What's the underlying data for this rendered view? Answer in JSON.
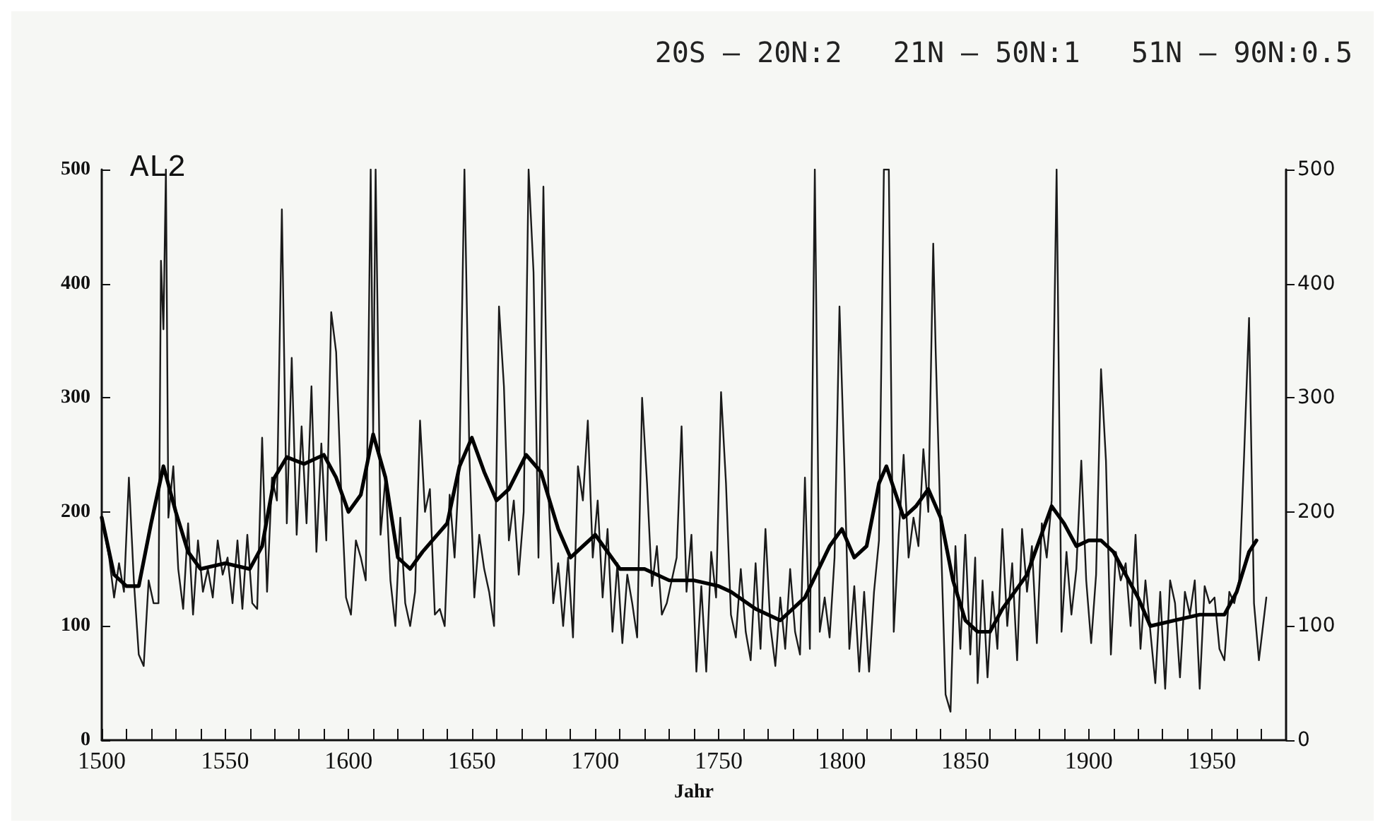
{
  "chart_data": {
    "type": "line",
    "title": "20S – 20N:2   21N – 50N:1   51N – 90N:0.5",
    "xlabel": "Jahr",
    "annotations": [
      "AL2"
    ],
    "xlim": [
      1500,
      1980
    ],
    "xticks": [
      1500,
      {
        "value": 1510,
        "label": null
      },
      {
        "value": 1520,
        "label": null
      },
      {
        "value": 1530,
        "label": null
      },
      {
        "value": 1540,
        "label": null
      },
      1550,
      {
        "value": 1560,
        "label": null
      },
      {
        "value": 1570,
        "label": null
      },
      {
        "value": 1580,
        "label": null
      },
      {
        "value": 1590,
        "label": null
      },
      1600,
      {
        "value": 1610,
        "label": null
      },
      {
        "value": 1620,
        "label": null
      },
      {
        "value": 1630,
        "label": null
      },
      {
        "value": 1640,
        "label": null
      },
      1650,
      {
        "value": 1660,
        "label": null
      },
      {
        "value": 1670,
        "label": null
      },
      {
        "value": 1680,
        "label": null
      },
      {
        "value": 1690,
        "label": null
      },
      1700,
      {
        "value": 1710,
        "label": null
      },
      {
        "value": 1720,
        "label": null
      },
      {
        "value": 1730,
        "label": null
      },
      {
        "value": 1740,
        "label": null
      },
      1750,
      {
        "value": 1760,
        "label": null
      },
      {
        "value": 1770,
        "label": null
      },
      {
        "value": 1780,
        "label": null
      },
      {
        "value": 1790,
        "label": null
      },
      1800,
      {
        "value": 1810,
        "label": null
      },
      {
        "value": 1820,
        "label": null
      },
      {
        "value": 1830,
        "label": null
      },
      {
        "value": 1840,
        "label": null
      },
      1850,
      {
        "value": 1860,
        "label": null
      },
      {
        "value": 1870,
        "label": null
      },
      {
        "value": 1880,
        "label": null
      },
      {
        "value": 1890,
        "label": null
      },
      1900,
      {
        "value": 1910,
        "label": null
      },
      {
        "value": 1920,
        "label": null
      },
      {
        "value": 1930,
        "label": null
      },
      {
        "value": 1940,
        "label": null
      },
      1950,
      {
        "value": 1960,
        "label": null
      },
      {
        "value": 1970,
        "label": null
      }
    ],
    "ylim": [
      0,
      500
    ],
    "yticks": [
      0,
      100,
      200,
      300,
      400,
      500
    ],
    "y2lim": [
      0,
      500
    ],
    "y2ticks": [
      0,
      100,
      200,
      300,
      400,
      500
    ],
    "grid": false,
    "marker": "none",
    "line_style": "solid",
    "series": [
      {
        "color": "#1a1a1a",
        "x": [
          1500,
          1503,
          1505,
          1507,
          1509,
          1511,
          1513,
          1515,
          1517,
          1519,
          1521,
          1523,
          1524,
          1525,
          1526,
          1527,
          1529,
          1531,
          1533,
          1535,
          1537,
          1539,
          1541,
          1543,
          1545,
          1547,
          1549,
          1551,
          1553,
          1555,
          1557,
          1559,
          1561,
          1563,
          1565,
          1567,
          1569,
          1571,
          1573,
          1575,
          1577,
          1579,
          1581,
          1583,
          1585,
          1587,
          1589,
          1591,
          1593,
          1595,
          1597,
          1599,
          1601,
          1603,
          1605,
          1607,
          1609,
          1610,
          1611,
          1613,
          1615,
          1617,
          1619,
          1621,
          1623,
          1625,
          1627,
          1629,
          1631,
          1633,
          1635,
          1637,
          1639,
          1641,
          1643,
          1645,
          1647,
          1649,
          1651,
          1653,
          1655,
          1657,
          1659,
          1661,
          1663,
          1665,
          1667,
          1669,
          1671,
          1673,
          1675,
          1677,
          1679,
          1681,
          1683,
          1685,
          1687,
          1689,
          1691,
          1693,
          1695,
          1697,
          1699,
          1701,
          1703,
          1705,
          1707,
          1709,
          1711,
          1713,
          1715,
          1717,
          1719,
          1721,
          1723,
          1725,
          1727,
          1729,
          1731,
          1733,
          1735,
          1737,
          1739,
          1741,
          1743,
          1745,
          1747,
          1749,
          1751,
          1753,
          1755,
          1757,
          1759,
          1761,
          1763,
          1765,
          1767,
          1769,
          1771,
          1773,
          1775,
          1777,
          1779,
          1781,
          1783,
          1785,
          1787,
          1789,
          1791,
          1793,
          1795,
          1797,
          1799,
          1801,
          1803,
          1805,
          1807,
          1809,
          1811,
          1813,
          1815,
          1817,
          1819,
          1821,
          1823,
          1825,
          1827,
          1829,
          1831,
          1833,
          1835,
          1837,
          1838,
          1840,
          1842,
          1844,
          1846,
          1848,
          1850,
          1852,
          1854,
          1855,
          1857,
          1859,
          1861,
          1863,
          1865,
          1867,
          1869,
          1871,
          1873,
          1875,
          1877,
          1879,
          1881,
          1883,
          1885,
          1887,
          1889,
          1891,
          1893,
          1895,
          1897,
          1899,
          1901,
          1903,
          1905,
          1907,
          1909,
          1911,
          1913,
          1915,
          1917,
          1919,
          1921,
          1923,
          1925,
          1927,
          1929,
          1931,
          1933,
          1935,
          1937,
          1939,
          1941,
          1943,
          1945,
          1947,
          1949,
          1951,
          1953,
          1955,
          1957,
          1959,
          1961,
          1963,
          1965,
          1967,
          1969,
          1972
        ],
        "values": [
          195,
          160,
          125,
          155,
          130,
          230,
          140,
          75,
          65,
          140,
          120,
          120,
          420,
          360,
          500,
          195,
          240,
          150,
          115,
          190,
          110,
          175,
          130,
          150,
          125,
          175,
          145,
          160,
          120,
          175,
          115,
          180,
          120,
          115,
          265,
          130,
          230,
          210,
          465,
          190,
          335,
          180,
          275,
          190,
          310,
          165,
          260,
          175,
          375,
          340,
          220,
          125,
          110,
          175,
          160,
          140,
          500,
          270,
          500,
          180,
          230,
          140,
          100,
          195,
          120,
          100,
          130,
          280,
          200,
          220,
          110,
          115,
          100,
          215,
          160,
          245,
          500,
          250,
          125,
          180,
          150,
          130,
          100,
          380,
          310,
          175,
          210,
          145,
          200,
          500,
          410,
          160,
          485,
          220,
          120,
          155,
          100,
          160,
          90,
          240,
          210,
          280,
          160,
          210,
          125,
          185,
          95,
          155,
          85,
          145,
          120,
          90,
          300,
          225,
          135,
          170,
          110,
          120,
          140,
          160,
          275,
          130,
          180,
          60,
          135,
          60,
          165,
          125,
          305,
          225,
          110,
          90,
          150,
          95,
          70,
          155,
          80,
          185,
          100,
          65,
          125,
          80,
          150,
          95,
          75,
          230,
          80,
          500,
          95,
          125,
          90,
          160,
          380,
          240,
          80,
          135,
          60,
          130,
          60,
          130,
          175,
          500,
          500,
          95,
          180,
          250,
          160,
          195,
          170,
          255,
          200,
          435,
          340,
          185,
          40,
          25,
          170,
          80,
          180,
          75,
          160,
          50,
          140,
          55,
          130,
          80,
          185,
          100,
          155,
          70,
          185,
          130,
          170,
          85,
          190,
          160,
          210,
          500,
          95,
          165,
          110,
          150,
          245,
          140,
          85,
          145,
          325,
          245,
          75,
          165,
          140,
          155,
          100,
          180,
          80,
          140,
          95,
          50,
          130,
          45,
          140,
          120,
          55,
          130,
          110,
          140,
          45,
          135,
          120,
          125,
          80,
          70,
          130,
          120,
          140,
          250,
          370,
          120,
          70,
          125
        ]
      },
      {
        "color": "#000000",
        "x": [
          1500,
          1505,
          1510,
          1515,
          1520,
          1525,
          1530,
          1535,
          1540,
          1550,
          1560,
          1565,
          1570,
          1575,
          1582,
          1590,
          1595,
          1600,
          1605,
          1610,
          1615,
          1620,
          1625,
          1630,
          1640,
          1645,
          1650,
          1655,
          1660,
          1665,
          1672,
          1678,
          1685,
          1690,
          1695,
          1700,
          1705,
          1710,
          1720,
          1730,
          1740,
          1750,
          1755,
          1765,
          1775,
          1785,
          1795,
          1800,
          1805,
          1810,
          1815,
          1818,
          1825,
          1830,
          1835,
          1840,
          1845,
          1850,
          1855,
          1860,
          1865,
          1875,
          1880,
          1885,
          1890,
          1895,
          1900,
          1905,
          1910,
          1920,
          1925,
          1935,
          1945,
          1955,
          1960,
          1965,
          1968
        ],
        "values": [
          195,
          145,
          135,
          135,
          190,
          240,
          200,
          165,
          150,
          155,
          150,
          170,
          230,
          248,
          242,
          250,
          230,
          200,
          215,
          268,
          230,
          160,
          150,
          165,
          190,
          240,
          265,
          235,
          210,
          220,
          250,
          235,
          185,
          160,
          170,
          180,
          165,
          150,
          150,
          140,
          140,
          135,
          130,
          115,
          105,
          125,
          170,
          185,
          160,
          170,
          225,
          240,
          195,
          205,
          220,
          195,
          140,
          105,
          95,
          95,
          115,
          145,
          175,
          205,
          190,
          170,
          175,
          175,
          165,
          125,
          100,
          105,
          110,
          110,
          130,
          165,
          175
        ]
      }
    ]
  }
}
